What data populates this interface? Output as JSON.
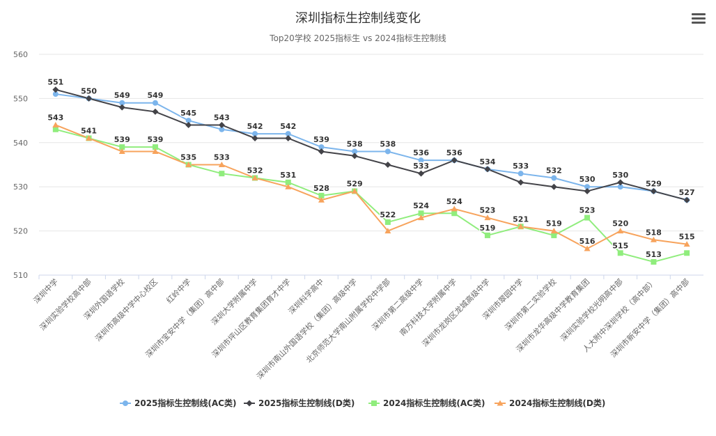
{
  "chart_data": {
    "type": "line",
    "title": "深圳指标生控制线变化",
    "subtitle": "Top20学校 2025指标生 vs 2024指标生控制线",
    "categories": [
      "深圳中学",
      "深圳实验学校高中部",
      "深圳外国语学校",
      "深圳市高级中学中心校区",
      "红岭中学",
      "深圳市宝安中学（集团）高中部",
      "深圳大学附属中学",
      "深圳市坪山区教育集团育才中学",
      "深圳科学高中",
      "深圳市南山外国语学校（集团）高级中学",
      "北京师范大学南山附属学校中学部",
      "深圳市第二高级中学",
      "南方科技大学附属中学",
      "深圳市龙岗区龙城高级中学",
      "深圳市翠园中学",
      "深圳市第二实验学校",
      "深圳市龙华高级中学教育集团",
      "深圳实验学校光明高中部",
      "人大附中深圳学校（高中部）",
      "深圳市新安中学（集团）高中部"
    ],
    "ylim": [
      510,
      560
    ],
    "yticks": [
      510,
      520,
      530,
      540,
      550,
      560
    ],
    "grid": true,
    "legend_position": "bottom",
    "series": [
      {
        "name": "2025指标生控制线(AC类)",
        "color": "#7cb5ec",
        "marker": "circle",
        "show_labels": true,
        "values": [
          551,
          550,
          549,
          549,
          545,
          543,
          542,
          542,
          539,
          538,
          538,
          536,
          536,
          534,
          533,
          532,
          530,
          530,
          529,
          527
        ]
      },
      {
        "name": "2025指标生控制线(D类)",
        "color": "#434348",
        "marker": "diamond",
        "show_labels": false,
        "values": [
          552,
          550,
          548,
          547,
          544,
          544,
          541,
          541,
          538,
          537,
          535,
          533,
          536,
          534,
          531,
          530,
          529,
          531,
          529,
          527
        ]
      },
      {
        "name": "2024指标生控制线(AC类)",
        "color": "#90ed7d",
        "marker": "square",
        "show_labels": false,
        "values": [
          543,
          541,
          539,
          539,
          535,
          533,
          532,
          531,
          528,
          529,
          522,
          524,
          524,
          519,
          521,
          519,
          523,
          515,
          513,
          515
        ]
      },
      {
        "name": "2024指标生控制线(D类)",
        "color": "#f7a35c",
        "marker": "triangle",
        "show_labels": false,
        "values": [
          544,
          541,
          538,
          538,
          535,
          535,
          532,
          530,
          527,
          529,
          520,
          523,
          525,
          523,
          521,
          520,
          516,
          520,
          518,
          517
        ]
      }
    ],
    "data_labels": {
      "upper": [
        "551",
        "550",
        "549",
        "549",
        "545",
        "543",
        "542",
        "542",
        "539",
        "538",
        "538",
        "536",
        "536",
        "534",
        "533",
        "532",
        "530",
        "530",
        "529",
        "527"
      ],
      "lower": [
        "543",
        "541",
        "539",
        "539",
        "535",
        "533",
        "532",
        "531",
        "528",
        "529",
        "522",
        "524",
        "524",
        "523",
        "521",
        "519",
        "523",
        "520",
        "518",
        "515"
      ],
      "extra": [
        "535",
        "533",
        "519",
        "516",
        "515",
        "513"
      ]
    }
  }
}
